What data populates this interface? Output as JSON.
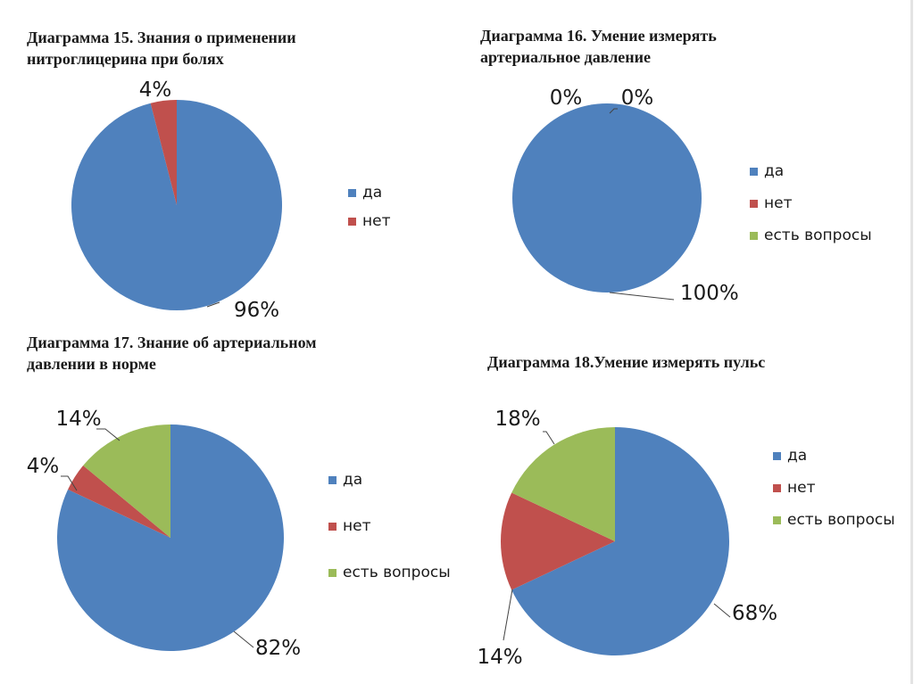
{
  "colors": {
    "yes": "#4f81bd",
    "no": "#c0504d",
    "questions": "#9bbb59"
  },
  "chart_data": [
    {
      "type": "pie",
      "title_lines": [
        "Диаграмма 15. Знания о применении",
        "нитроглицерина при болях"
      ],
      "categories": [
        "да",
        "нет"
      ],
      "values": [
        96,
        4
      ],
      "data_labels": [
        "96%",
        "4%"
      ],
      "colors": [
        "#4f81bd",
        "#c0504d"
      ],
      "legend_placement": "right"
    },
    {
      "type": "pie",
      "title_lines": [
        "Диаграмма 16. Умение измерять",
        "артериальное давление"
      ],
      "categories": [
        "да",
        "нет",
        "есть вопросы"
      ],
      "values": [
        100,
        0,
        0
      ],
      "data_labels": [
        "100%",
        "0%",
        "0%"
      ],
      "colors": [
        "#4f81bd",
        "#c0504d",
        "#9bbb59"
      ],
      "legend_placement": "right"
    },
    {
      "type": "pie",
      "title_lines": [
        "Диаграмма 17. Знание об артериальном",
        "давлении в норме"
      ],
      "categories": [
        "да",
        "нет",
        "есть вопросы"
      ],
      "values": [
        82,
        4,
        14
      ],
      "data_labels": [
        "82%",
        "4%",
        "14%"
      ],
      "colors": [
        "#4f81bd",
        "#c0504d",
        "#9bbb59"
      ],
      "legend_placement": "right"
    },
    {
      "type": "pie",
      "title_lines": [
        "Диаграмма 18.Умение измерять пульс"
      ],
      "categories": [
        "да",
        "нет",
        "есть вопросы"
      ],
      "values": [
        68,
        14,
        18
      ],
      "data_labels": [
        "68%",
        "14%",
        "18%"
      ],
      "colors": [
        "#4f81bd",
        "#c0504d",
        "#9bbb59"
      ],
      "legend_placement": "right"
    }
  ]
}
